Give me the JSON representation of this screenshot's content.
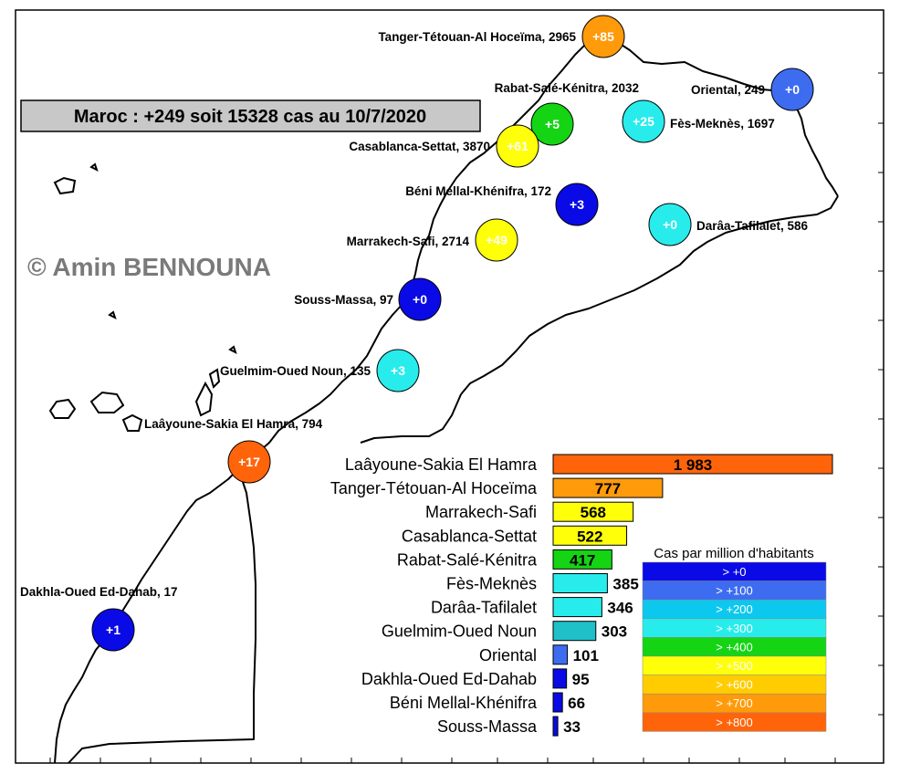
{
  "title": "Maroc : +249 soit 15328 cas au 10/7/2020",
  "watermark": "© Amin BENNOUNA",
  "legend": {
    "title": "Cas par million d'habitants",
    "items": [
      {
        "label": "> +0",
        "color": "#0a0ae6"
      },
      {
        "label": "> +100",
        "color": "#3d6cf0"
      },
      {
        "label": "> +200",
        "color": "#0cc8ee"
      },
      {
        "label": "> +300",
        "color": "#28ecec"
      },
      {
        "label": "> +400",
        "color": "#14d414"
      },
      {
        "label": "> +500",
        "color": "#ffff0a"
      },
      {
        "label": "> +600",
        "color": "#ffcc00"
      },
      {
        "label": "> +700",
        "color": "#ff9a0a"
      },
      {
        "label": "> +800",
        "color": "#ff640a"
      }
    ]
  },
  "regions": [
    {
      "name": "Tanger-Tétouan-Al Hoceïma",
      "cases": 2965,
      "delta": "+85",
      "color": "#ff9a0a"
    },
    {
      "name": "Rabat-Salé-Kénitra",
      "cases": 2032,
      "delta": "+5",
      "color": "#14d414"
    },
    {
      "name": "Oriental",
      "cases": 249,
      "delta": "+0",
      "color": "#3d6cf0"
    },
    {
      "name": "Fès-Meknès",
      "cases": 1697,
      "delta": "+25",
      "color": "#28ecec"
    },
    {
      "name": "Casablanca-Settat",
      "cases": 3870,
      "delta": "+61",
      "color": "#ffff0a"
    },
    {
      "name": "Béni Mellal-Khénifra",
      "cases": 172,
      "delta": "+3",
      "color": "#0a0ae6"
    },
    {
      "name": "Darâa-Tafilalet",
      "cases": 586,
      "delta": "+0",
      "color": "#28ecec"
    },
    {
      "name": "Marrakech-Safi",
      "cases": 2714,
      "delta": "+49",
      "color": "#ffff0a"
    },
    {
      "name": "Souss-Massa",
      "cases": 97,
      "delta": "+0",
      "color": "#0a0ae6"
    },
    {
      "name": "Guelmim-Oued Noun",
      "cases": 135,
      "delta": "+3",
      "color": "#28ecec"
    },
    {
      "name": "Laâyoune-Sakia El Hamra",
      "cases": 794,
      "delta": "+17",
      "color": "#ff640a"
    },
    {
      "name": "Dakhla-Oued Ed-Dahab",
      "cases": 17,
      "delta": "+1",
      "color": "#0a0ae6"
    }
  ],
  "chart_data": {
    "type": "bar",
    "orientation": "horizontal",
    "title": "",
    "xlabel": "",
    "ylabel": "",
    "categories": [
      "Laâyoune-Sakia El Hamra",
      "Tanger-Tétouan-Al Hoceïma",
      "Marrakech-Safi",
      "Casablanca-Settat",
      "Rabat-Salé-Kénitra",
      "Fès-Meknès",
      "Darâa-Tafilalet",
      "Guelmim-Oued Noun",
      "Oriental",
      "Dakhla-Oued Ed-Dahab",
      "Béni Mellal-Khénifra",
      "Souss-Massa"
    ],
    "values": [
      1983,
      777,
      568,
      522,
      417,
      385,
      346,
      303,
      101,
      95,
      66,
      33
    ],
    "value_labels": [
      "1 983",
      "777",
      "568",
      "522",
      "417",
      "385",
      "346",
      "303",
      "101",
      "95",
      "66",
      "33"
    ],
    "colors": [
      "#ff640a",
      "#ff9a0a",
      "#ffff0a",
      "#ffff0a",
      "#14d414",
      "#28ecec",
      "#28ecec",
      "#1fc0c8",
      "#3d6cf0",
      "#0a0ae6",
      "#0a0ae6",
      "#0a0ae6"
    ],
    "xlim": [
      0,
      2000
    ],
    "grid": false,
    "legend_position": "bottom-right"
  }
}
